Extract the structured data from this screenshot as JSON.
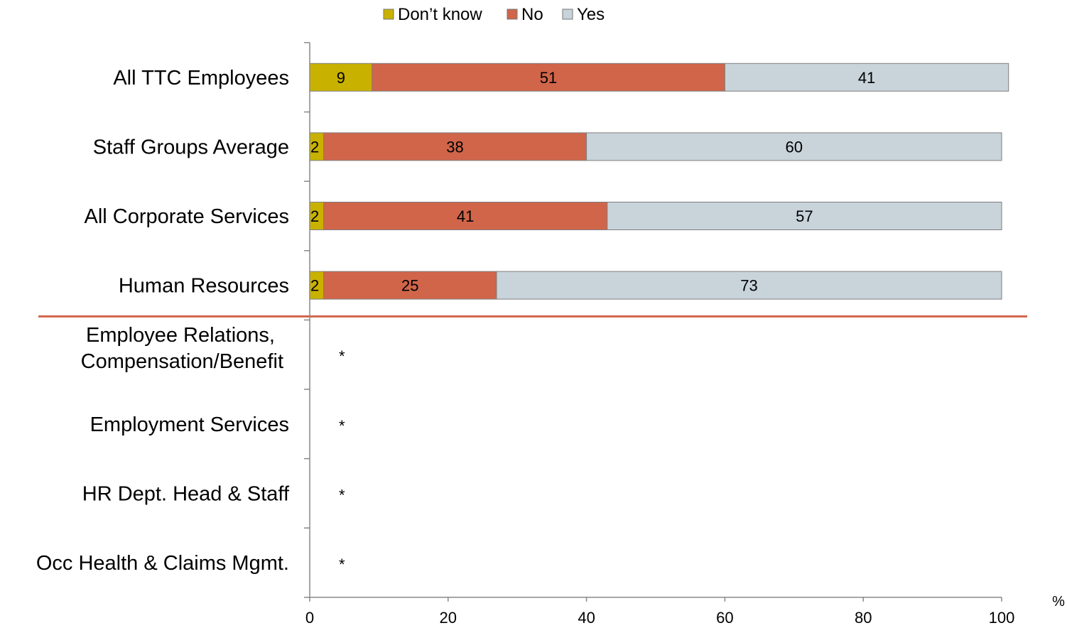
{
  "chart_data": {
    "type": "bar",
    "orientation": "horizontal",
    "stacked": true,
    "categories": [
      "All TTC Employees",
      "Staff Groups Average",
      "All Corporate Services",
      "Human Resources",
      "Employee Relations,\nCompensation/Benefit",
      "Employment Services",
      "HR Dept. Head & Staff",
      "Occ Health & Claims Mgmt."
    ],
    "series": [
      {
        "name": "Don’t know",
        "color": "#C9B100",
        "values": [
          9,
          2,
          2,
          2,
          null,
          null,
          null,
          null
        ]
      },
      {
        "name": "No",
        "color": "#D0654A",
        "values": [
          51,
          38,
          41,
          25,
          null,
          null,
          null,
          null
        ]
      },
      {
        "name": "Yes",
        "color": "#C8D3DA",
        "values": [
          41,
          60,
          57,
          73,
          null,
          null,
          null,
          null
        ]
      }
    ],
    "suppressed_marker": "*",
    "suppressed_categories": [
      4,
      5,
      6,
      7
    ],
    "xlim": [
      0,
      100
    ],
    "xticks": [
      0,
      20,
      40,
      60,
      80,
      100
    ],
    "x_unit": "%",
    "legend_position": "top-center",
    "divider_after_category": 3,
    "divider_color": "#D0654A",
    "grid": false
  }
}
